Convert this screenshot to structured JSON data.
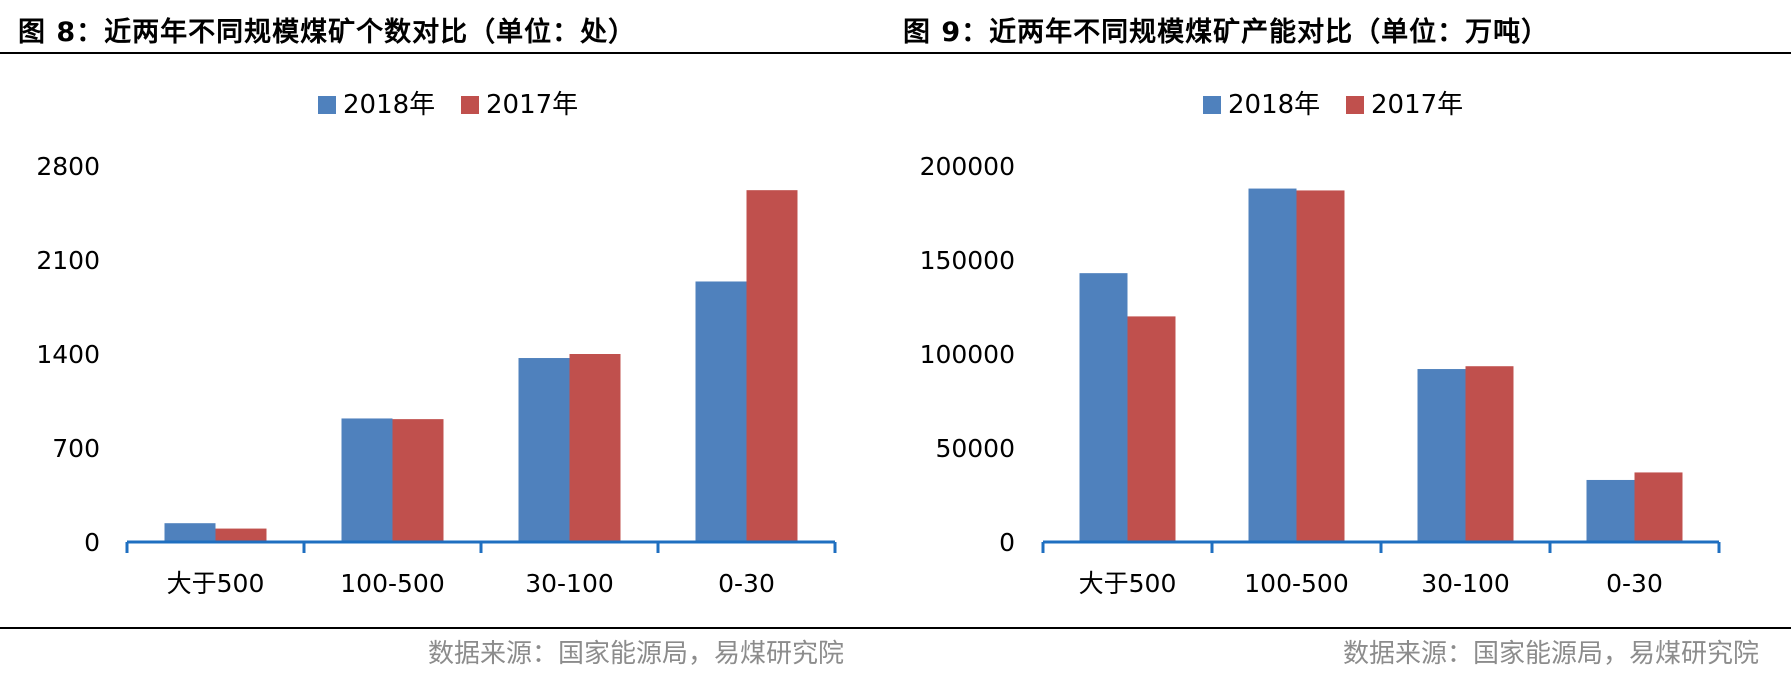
{
  "colors": {
    "series_2018": "#4f81bd",
    "series_2017": "#c0504d",
    "axis": "#1f6fc0",
    "source_text": "#8c8c8c"
  },
  "charts": [
    {
      "title": "图 8：近两年不同规模煤矿个数对比（单位：处）",
      "source": "数据来源：国家能源局，易煤研究院"
    },
    {
      "title": "图 9：近两年不同规模煤矿产能对比（单位：万吨）",
      "source": "数据来源：国家能源局，易煤研究院"
    }
  ],
  "chart_data": [
    {
      "type": "bar",
      "title": "图 8：近两年不同规模煤矿个数对比（单位：处）",
      "categories": [
        "大于500",
        "100-500",
        "30-100",
        "0-30"
      ],
      "series": [
        {
          "name": "2018年",
          "values": [
            140,
            920,
            1370,
            1940
          ]
        },
        {
          "name": "2017年",
          "values": [
            100,
            915,
            1400,
            2620
          ]
        }
      ],
      "yticks": [
        "0",
        "700",
        "1400",
        "2100",
        "2800"
      ],
      "ylim": [
        0,
        2800
      ],
      "legend": "top-center",
      "grid": false
    },
    {
      "type": "bar",
      "title": "图 9：近两年不同规模煤矿产能对比（单位：万吨）",
      "categories": [
        "大于500",
        "100-500",
        "30-100",
        "0-30"
      ],
      "series": [
        {
          "name": "2018年",
          "values": [
            143000,
            188000,
            92000,
            33000
          ]
        },
        {
          "name": "2017年",
          "values": [
            120000,
            187000,
            93500,
            37000
          ]
        }
      ],
      "yticks": [
        "0",
        "50000",
        "100000",
        "150000",
        "200000"
      ],
      "ylim": [
        0,
        200000
      ],
      "legend": "top-center",
      "grid": false
    }
  ]
}
